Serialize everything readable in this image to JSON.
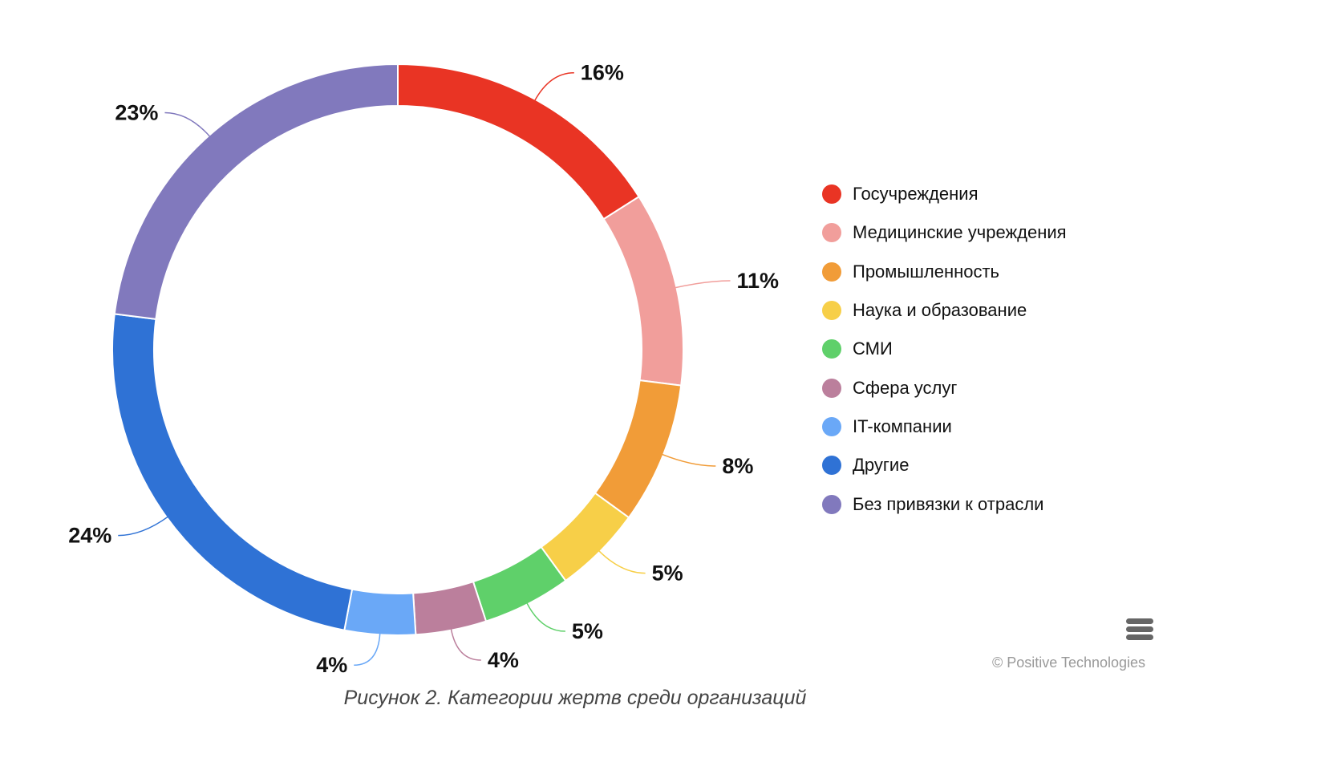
{
  "chart_data": {
    "type": "pie",
    "subtype": "donut",
    "categories": [
      "Госучреждения",
      "Медицинские учреждения",
      "Промышленность",
      "Наука и образование",
      "СМИ",
      "Сфера услуг",
      "IT-компании",
      "Другие",
      "Без привязки к отрасли"
    ],
    "values": [
      16,
      11,
      8,
      5,
      5,
      4,
      4,
      24,
      23
    ],
    "labels": [
      "16%",
      "11%",
      "8%",
      "5%",
      "5%",
      "4%",
      "4%",
      "24%",
      "23%"
    ],
    "colors": [
      "#e93424",
      "#f19e9b",
      "#f19c38",
      "#f7cf48",
      "#5fd06a",
      "#bb7f9c",
      "#6aa8f7",
      "#2f72d5",
      "#8179bd"
    ],
    "legend_position": "right",
    "caption": "Рисунок 2. Категории жертв среди организаций"
  },
  "credits": "© Positive Technologies",
  "menu_icon": "hamburger-menu-icon"
}
